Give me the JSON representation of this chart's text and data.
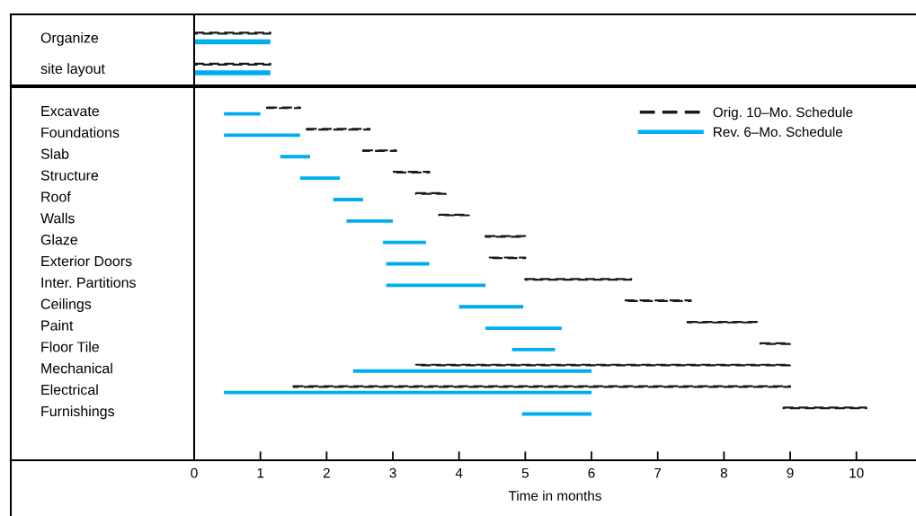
{
  "chart_data": [
    {
      "type": "bar",
      "orientation": "horizontal",
      "categories": [
        "Organize",
        "site layout"
      ],
      "xlim": [
        0,
        10.9
      ],
      "xticks": [
        0,
        1,
        2,
        3,
        4,
        5,
        6,
        7,
        8,
        9,
        10
      ],
      "tick_labels": "y",
      "grid": false,
      "legend": false,
      "series": [
        {
          "color": "#1a1a1a",
          "line_style": "dashed",
          "base": [
            0,
            0
          ],
          "values": [
            1.15,
            1.15
          ]
        },
        {
          "color": "#00aeef",
          "line_style": "solid",
          "base": [
            0,
            0
          ],
          "values": [
            1.15,
            1.15
          ]
        }
      ]
    },
    {
      "type": "bar",
      "orientation": "horizontal",
      "categories": [
        "Excavate",
        "Foundations",
        "Slab",
        "Structure",
        "Roof",
        "Walls",
        "Glaze",
        "Exterior Doors",
        "Inter. Partitions",
        "Ceilings",
        "Paint",
        "Floor Tile",
        "Mechanical",
        "Electrical",
        "Furnishings"
      ],
      "xlim": [
        0,
        10.9
      ],
      "xticks": [
        0,
        1,
        2,
        3,
        4,
        5,
        6,
        7,
        8,
        9,
        10
      ],
      "xlabel": "Time in months",
      "grid": false,
      "legend": "top right",
      "series": [
        {
          "name": "Orig. 10–Mo. Schedule",
          "color": "#1a1a1a",
          "line_style": "dashed",
          "base": [
            1.1,
            1.7,
            2.55,
            3.0,
            3.35,
            3.7,
            4.4,
            4.45,
            5.0,
            6.5,
            7.45,
            8.55,
            3.35,
            1.5,
            8.9
          ],
          "values": [
            0.5,
            0.95,
            0.5,
            0.55,
            0.45,
            0.45,
            0.6,
            0.55,
            1.6,
            1.0,
            1.05,
            0.45,
            5.65,
            7.5,
            1.25
          ]
        },
        {
          "name": "Rev. 6–Mo. Schedule",
          "color": "#00aeef",
          "line_style": "solid",
          "base": [
            0.45,
            0.45,
            1.3,
            1.6,
            2.1,
            2.3,
            2.85,
            2.9,
            2.9,
            4.0,
            4.4,
            4.8,
            2.4,
            0.45,
            4.95
          ],
          "values": [
            0.55,
            1.15,
            0.45,
            0.6,
            0.45,
            0.7,
            0.65,
            0.65,
            1.5,
            0.97,
            1.15,
            0.65,
            3.6,
            5.55,
            1.05
          ]
        }
      ]
    }
  ]
}
